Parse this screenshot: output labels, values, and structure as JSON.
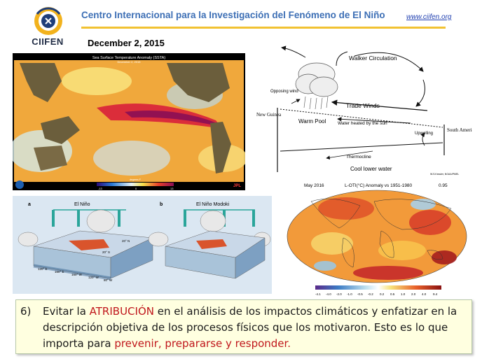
{
  "header": {
    "logo_text": "CIIFEN",
    "title": "Centro Internacional para la Investigación del Fenómeno de El Niño",
    "url": "www.ciifen.org",
    "date": "December 2, 2015"
  },
  "sst_map": {
    "title": "Sea Surface Temperature Anomaly (SSTA)",
    "subtitle": "December 2, 2015",
    "scale_label": "degrees F",
    "ticks": [
      "-13",
      "0",
      "13"
    ],
    "credit": "JPL"
  },
  "walker": {
    "walker_label": "Walker Circulation",
    "opposing_wind": "Opposing wind",
    "trade_winds": "Trade Winds",
    "new_guinea": "New Guinea",
    "warm_pool": "Warm Pool",
    "water_heated": "Water heated by the sun",
    "upwelling": "Upwelling",
    "south_america": "South America",
    "thermocline": "Thermocline",
    "cool_water": "Cool lower water",
    "credit": "W.S.Kessler, NOAA/PMEL"
  },
  "anomaly_map": {
    "left_label": "May 2016",
    "center_label": "L-OTI(°C) Anomaly vs 1951-1980",
    "right_label": "0.95",
    "scale_ticks": [
      "-4.1",
      "-4.0",
      "-2.0",
      "-1.0",
      "-0.5",
      "-0.2",
      "0.2",
      "0.5",
      "1.0",
      "2.0",
      "4.0",
      "9.4"
    ]
  },
  "modoki": {
    "panel_a_letter": "a",
    "panel_a_title": "El Niño",
    "panel_b_letter": "b",
    "panel_b_title": "El Niño Modoki",
    "lat_n": "20° N",
    "lat_s": "20° S",
    "lon_labels": [
      "120° E",
      "160° E",
      "160° W",
      "120° W",
      "80° W"
    ]
  },
  "note": {
    "number": "6)",
    "t1": "Evitar la ",
    "t2": "ATRIBUCIÓN",
    "t3": " en el análisis de los impactos climáticos y enfatizar en la descripción objetiva de los procesos físicos que los motivaron. Esto es lo que importa para ",
    "t4": "prevenir, prepararse y responder.",
    "colors": {
      "accent": "#c0171c",
      "background": "#ffffe0"
    }
  }
}
